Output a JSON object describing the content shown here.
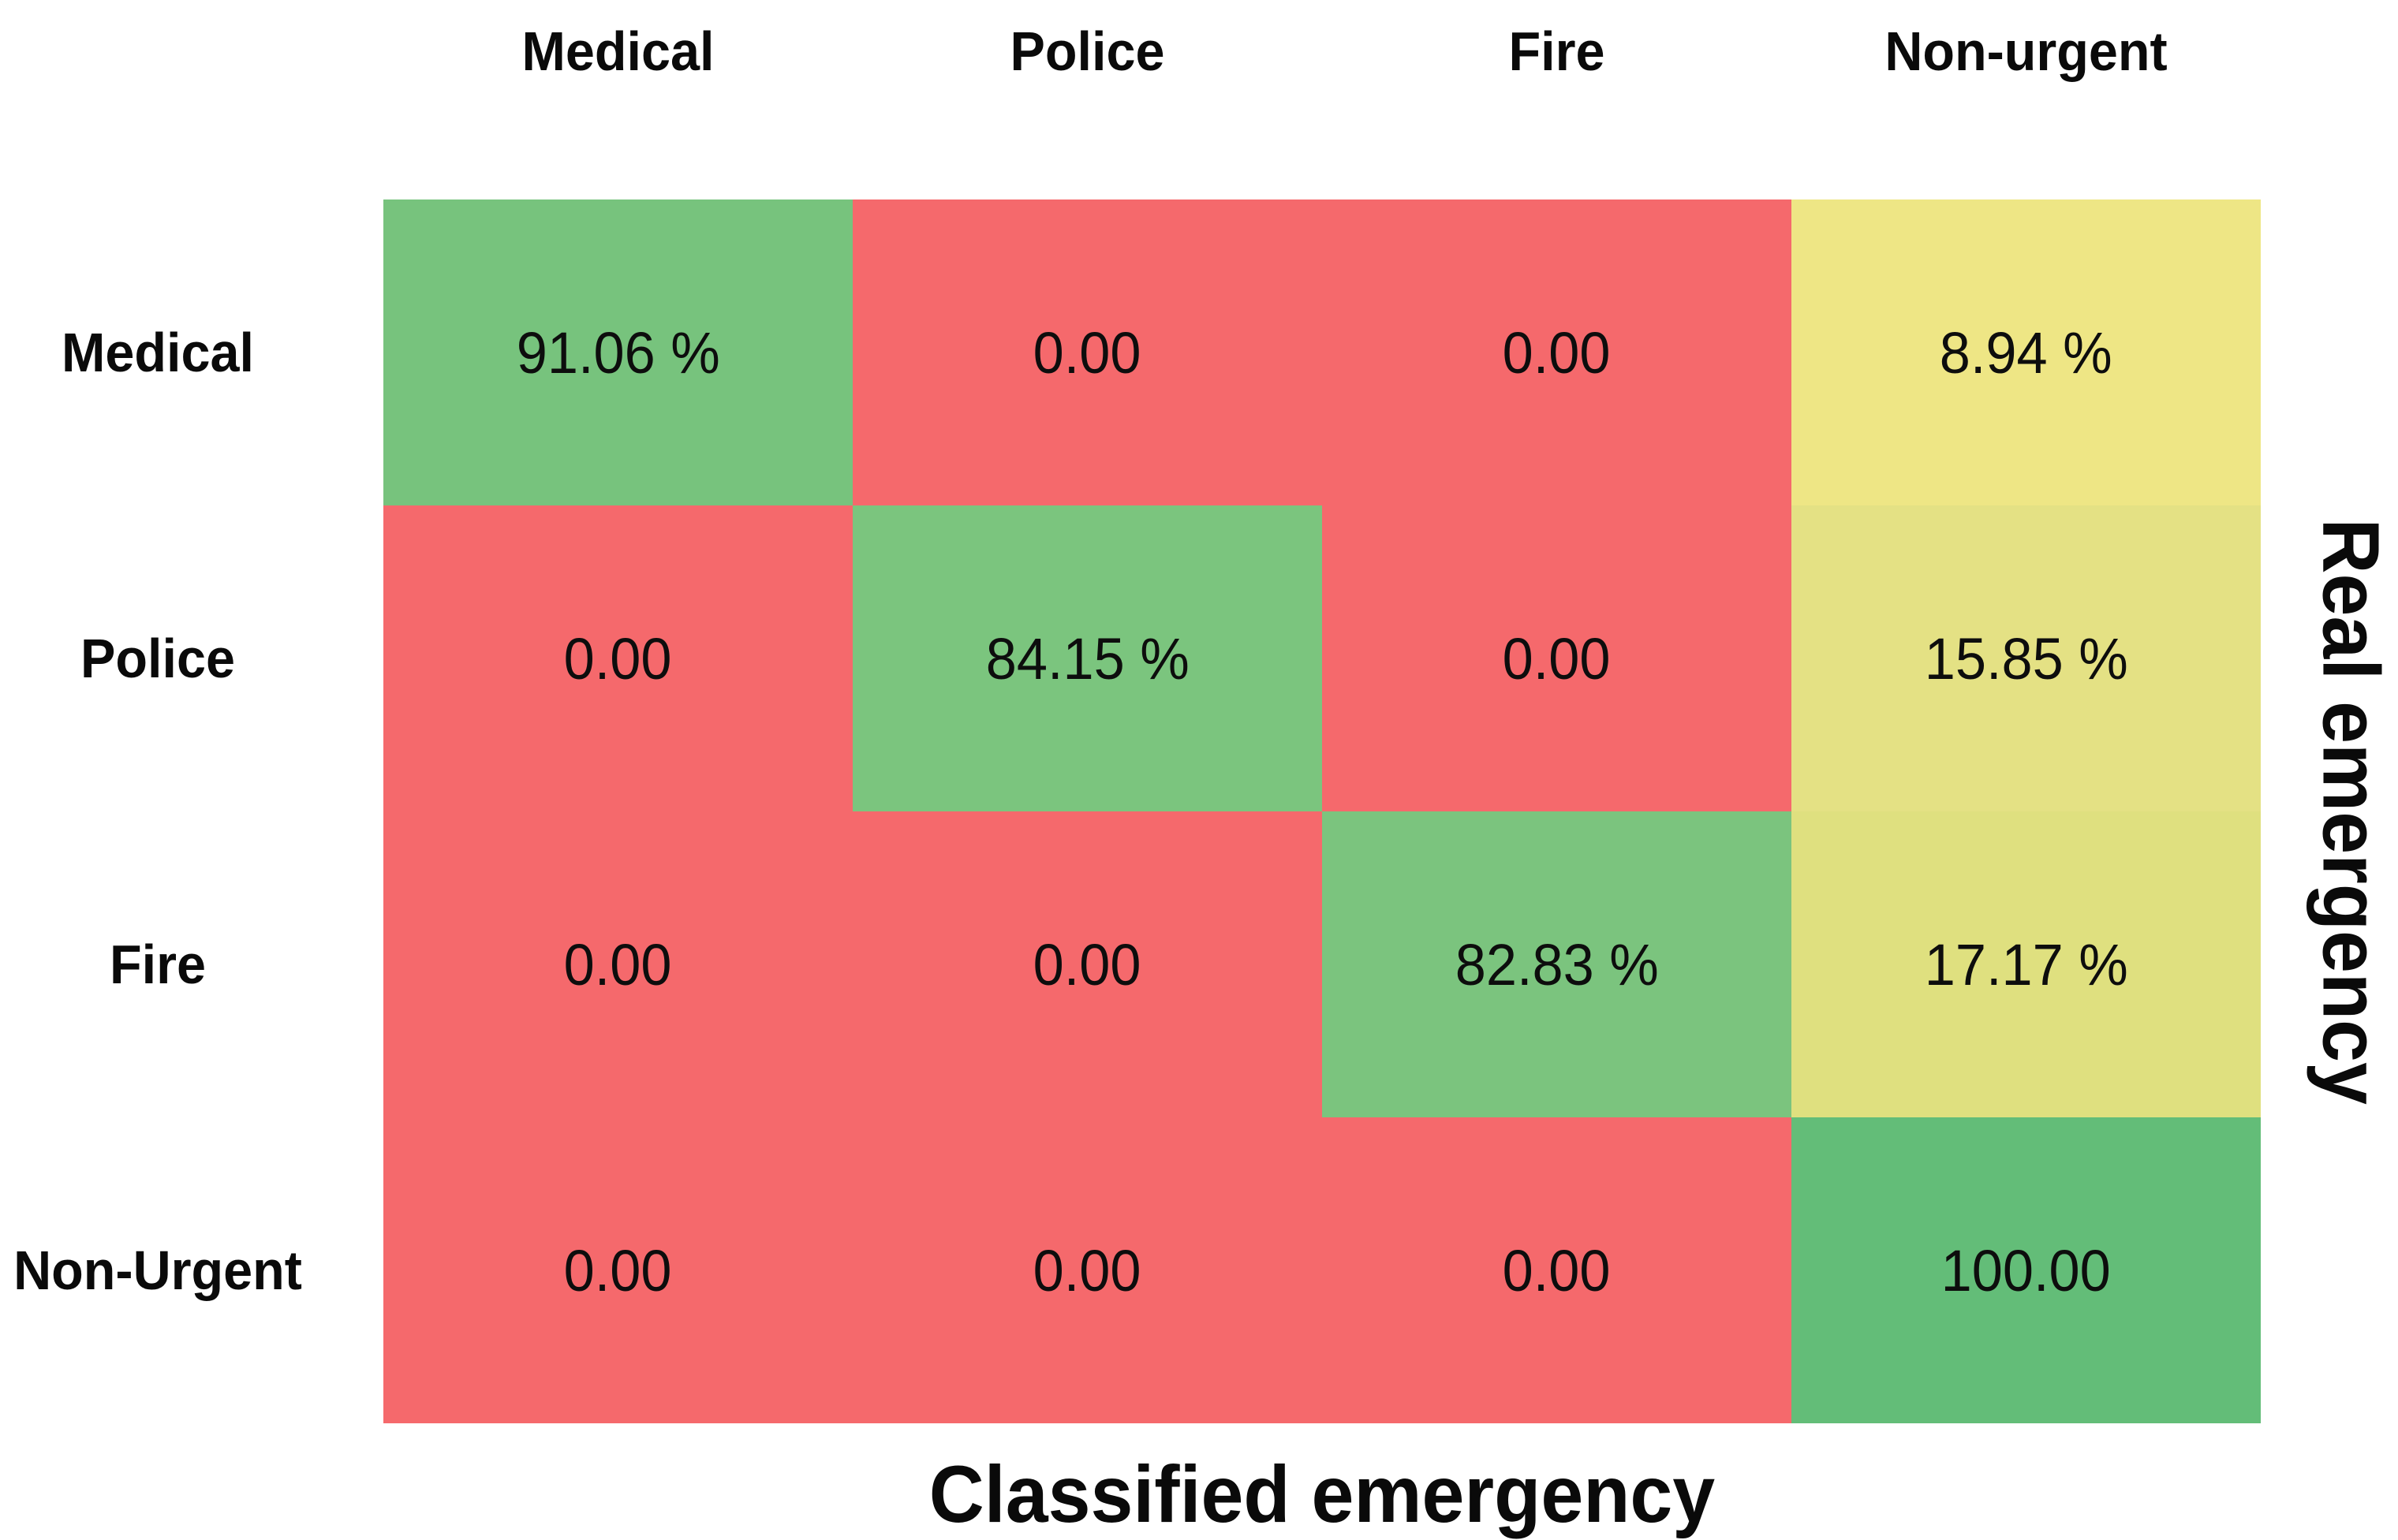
{
  "chart_data": {
    "type": "heatmap",
    "title": "",
    "xlabel": "Classified emergency",
    "ylabel": "Real emergency",
    "columns": [
      "Medical",
      "Police",
      "Fire",
      "Non-urgent"
    ],
    "rows": [
      "Medical",
      "Police",
      "Fire",
      "Non-Urgent"
    ],
    "values": [
      [
        91.06,
        0.0,
        0.0,
        8.94
      ],
      [
        0.0,
        84.15,
        0.0,
        15.85
      ],
      [
        0.0,
        0.0,
        82.83,
        17.17
      ],
      [
        0.0,
        0.0,
        0.0,
        100.0
      ]
    ],
    "cell_labels": [
      [
        "91.06 %",
        "0.00",
        "0.00",
        "8.94 %"
      ],
      [
        "0.00",
        "84.15 %",
        "0.00",
        "15.85 %"
      ],
      [
        "0.00",
        "0.00",
        "82.83 %",
        "17.17 %"
      ],
      [
        "0.00",
        "0.00",
        "0.00",
        "100.00"
      ]
    ],
    "cell_colors": [
      [
        "#77c37d",
        "#f5696c",
        "#f5696c",
        "#eee685"
      ],
      [
        "#f5696c",
        "#7bc57e",
        "#f5696c",
        "#e4e184"
      ],
      [
        "#f5696c",
        "#f5696c",
        "#7bc47e",
        "#dfe07f"
      ],
      [
        "#f5696c",
        "#f5696c",
        "#f5696c",
        "#63bd78"
      ]
    ],
    "colors": {
      "miss_red": "#f5696c",
      "diagonal_green": "#77c37d",
      "full_green": "#63bd78",
      "yellow_light": "#eee685",
      "yellow_mid": "#e4e184",
      "yellow_dark": "#dfe07f",
      "text": "#0a0a0a",
      "background": "#ffffff"
    },
    "legend": "none",
    "grid": "off"
  }
}
